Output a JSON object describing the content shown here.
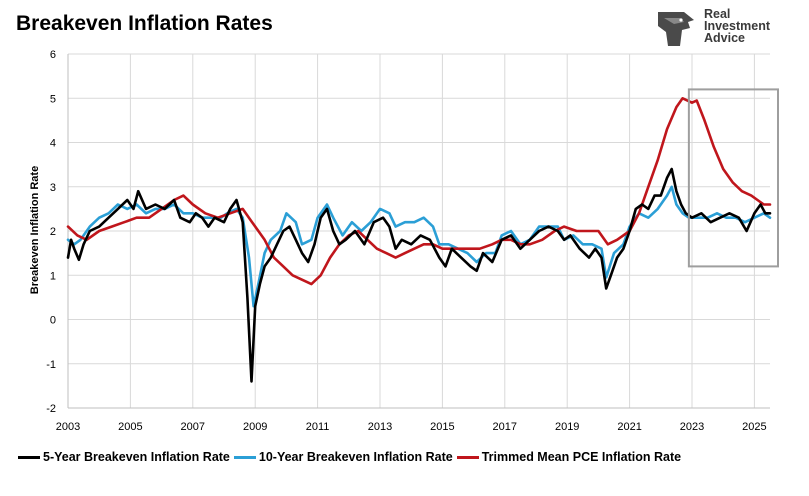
{
  "title": "Breakeven Inflation Rates",
  "logo": {
    "line1": "Real",
    "line2": "Investment",
    "line3": "Advice",
    "icon": "eagle-head-logo-icon"
  },
  "colors": {
    "five_year": "#000000",
    "ten_year": "#2b9fd6",
    "pce": "#c0161c",
    "highlight_box": "#9e9e9e",
    "grid": "#d9d9d9"
  },
  "chart_data": {
    "type": "line",
    "title": "Breakeven Inflation Rates",
    "xlabel": "",
    "ylabel": "Breakeven Inflation Rate",
    "xlim": [
      2003.0,
      2025.5
    ],
    "ylim": [
      -2,
      6
    ],
    "grid": true,
    "legend_position": "bottom",
    "x_ticks": [
      "2003",
      "2005",
      "2007",
      "2009",
      "2011",
      "2013",
      "2015",
      "2017",
      "2019",
      "2021",
      "2023",
      "2025"
    ],
    "y_ticks": [
      "-2",
      "-1",
      "0",
      "1",
      "2",
      "3",
      "4",
      "5",
      "6"
    ],
    "highlight_region": {
      "x": [
        2022.9,
        2025.5
      ],
      "y": [
        1.2,
        5.2
      ]
    },
    "series": [
      {
        "name": "5-Year Breakeven Inflation Rate",
        "points": [
          [
            2003.0,
            1.4
          ],
          [
            2003.1,
            1.8
          ],
          [
            2003.2,
            1.6
          ],
          [
            2003.35,
            1.35
          ],
          [
            2003.5,
            1.7
          ],
          [
            2003.7,
            2.0
          ],
          [
            2004.0,
            2.1
          ],
          [
            2004.3,
            2.3
          ],
          [
            2004.6,
            2.5
          ],
          [
            2004.9,
            2.7
          ],
          [
            2005.1,
            2.5
          ],
          [
            2005.25,
            2.9
          ],
          [
            2005.5,
            2.5
          ],
          [
            2005.8,
            2.6
          ],
          [
            2006.1,
            2.5
          ],
          [
            2006.4,
            2.7
          ],
          [
            2006.6,
            2.3
          ],
          [
            2006.9,
            2.2
          ],
          [
            2007.1,
            2.4
          ],
          [
            2007.3,
            2.3
          ],
          [
            2007.5,
            2.1
          ],
          [
            2007.7,
            2.3
          ],
          [
            2008.0,
            2.2
          ],
          [
            2008.2,
            2.5
          ],
          [
            2008.4,
            2.7
          ],
          [
            2008.6,
            2.2
          ],
          [
            2008.75,
            0.5
          ],
          [
            2008.88,
            -1.4
          ],
          [
            2009.0,
            0.3
          ],
          [
            2009.15,
            0.8
          ],
          [
            2009.3,
            1.2
          ],
          [
            2009.5,
            1.4
          ],
          [
            2009.7,
            1.7
          ],
          [
            2009.9,
            2.0
          ],
          [
            2010.1,
            2.1
          ],
          [
            2010.3,
            1.8
          ],
          [
            2010.5,
            1.5
          ],
          [
            2010.7,
            1.3
          ],
          [
            2010.9,
            1.7
          ],
          [
            2011.1,
            2.3
          ],
          [
            2011.3,
            2.5
          ],
          [
            2011.5,
            2.0
          ],
          [
            2011.7,
            1.7
          ],
          [
            2011.9,
            1.8
          ],
          [
            2012.2,
            2.0
          ],
          [
            2012.5,
            1.7
          ],
          [
            2012.8,
            2.2
          ],
          [
            2013.1,
            2.3
          ],
          [
            2013.3,
            2.1
          ],
          [
            2013.5,
            1.6
          ],
          [
            2013.7,
            1.8
          ],
          [
            2014.0,
            1.7
          ],
          [
            2014.3,
            1.9
          ],
          [
            2014.6,
            1.8
          ],
          [
            2014.9,
            1.4
          ],
          [
            2015.1,
            1.2
          ],
          [
            2015.3,
            1.6
          ],
          [
            2015.6,
            1.4
          ],
          [
            2015.9,
            1.2
          ],
          [
            2016.1,
            1.1
          ],
          [
            2016.3,
            1.5
          ],
          [
            2016.6,
            1.3
          ],
          [
            2016.9,
            1.8
          ],
          [
            2017.2,
            1.9
          ],
          [
            2017.5,
            1.6
          ],
          [
            2017.8,
            1.8
          ],
          [
            2018.1,
            2.0
          ],
          [
            2018.4,
            2.1
          ],
          [
            2018.7,
            2.0
          ],
          [
            2018.9,
            1.8
          ],
          [
            2019.1,
            1.9
          ],
          [
            2019.4,
            1.6
          ],
          [
            2019.7,
            1.4
          ],
          [
            2019.9,
            1.6
          ],
          [
            2020.1,
            1.4
          ],
          [
            2020.25,
            0.7
          ],
          [
            2020.4,
            1.0
          ],
          [
            2020.6,
            1.4
          ],
          [
            2020.8,
            1.6
          ],
          [
            2021.0,
            2.0
          ],
          [
            2021.2,
            2.5
          ],
          [
            2021.4,
            2.6
          ],
          [
            2021.6,
            2.5
          ],
          [
            2021.8,
            2.8
          ],
          [
            2022.0,
            2.8
          ],
          [
            2022.2,
            3.2
          ],
          [
            2022.35,
            3.4
          ],
          [
            2022.5,
            2.9
          ],
          [
            2022.65,
            2.6
          ],
          [
            2022.8,
            2.4
          ],
          [
            2023.0,
            2.3
          ],
          [
            2023.3,
            2.4
          ],
          [
            2023.6,
            2.2
          ],
          [
            2023.9,
            2.3
          ],
          [
            2024.2,
            2.4
          ],
          [
            2024.5,
            2.3
          ],
          [
            2024.75,
            2.0
          ],
          [
            2025.0,
            2.4
          ],
          [
            2025.2,
            2.6
          ],
          [
            2025.35,
            2.4
          ],
          [
            2025.5,
            2.4
          ]
        ]
      },
      {
        "name": "10-Year Breakeven Inflation Rate",
        "points": [
          [
            2003.0,
            1.8
          ],
          [
            2003.2,
            1.7
          ],
          [
            2003.4,
            1.8
          ],
          [
            2003.7,
            2.1
          ],
          [
            2004.0,
            2.3
          ],
          [
            2004.3,
            2.4
          ],
          [
            2004.6,
            2.6
          ],
          [
            2004.9,
            2.5
          ],
          [
            2005.2,
            2.6
          ],
          [
            2005.5,
            2.4
          ],
          [
            2005.8,
            2.5
          ],
          [
            2006.1,
            2.5
          ],
          [
            2006.4,
            2.6
          ],
          [
            2006.7,
            2.4
          ],
          [
            2007.0,
            2.4
          ],
          [
            2007.3,
            2.3
          ],
          [
            2007.6,
            2.3
          ],
          [
            2007.9,
            2.3
          ],
          [
            2008.1,
            2.4
          ],
          [
            2008.4,
            2.5
          ],
          [
            2008.6,
            2.3
          ],
          [
            2008.8,
            1.4
          ],
          [
            2008.95,
            0.3
          ],
          [
            2009.1,
            0.8
          ],
          [
            2009.3,
            1.5
          ],
          [
            2009.5,
            1.8
          ],
          [
            2009.8,
            2.0
          ],
          [
            2010.0,
            2.4
          ],
          [
            2010.3,
            2.2
          ],
          [
            2010.5,
            1.7
          ],
          [
            2010.8,
            1.8
          ],
          [
            2011.0,
            2.3
          ],
          [
            2011.3,
            2.6
          ],
          [
            2011.5,
            2.3
          ],
          [
            2011.8,
            1.9
          ],
          [
            2012.1,
            2.2
          ],
          [
            2012.4,
            2.0
          ],
          [
            2012.7,
            2.2
          ],
          [
            2013.0,
            2.5
          ],
          [
            2013.3,
            2.4
          ],
          [
            2013.5,
            2.1
          ],
          [
            2013.8,
            2.2
          ],
          [
            2014.1,
            2.2
          ],
          [
            2014.4,
            2.3
          ],
          [
            2014.7,
            2.1
          ],
          [
            2014.9,
            1.7
          ],
          [
            2015.2,
            1.7
          ],
          [
            2015.5,
            1.6
          ],
          [
            2015.8,
            1.5
          ],
          [
            2016.1,
            1.3
          ],
          [
            2016.4,
            1.5
          ],
          [
            2016.7,
            1.5
          ],
          [
            2016.9,
            1.9
          ],
          [
            2017.2,
            2.0
          ],
          [
            2017.5,
            1.7
          ],
          [
            2017.8,
            1.8
          ],
          [
            2018.1,
            2.1
          ],
          [
            2018.4,
            2.1
          ],
          [
            2018.7,
            2.1
          ],
          [
            2018.9,
            1.8
          ],
          [
            2019.2,
            1.9
          ],
          [
            2019.5,
            1.7
          ],
          [
            2019.8,
            1.7
          ],
          [
            2020.1,
            1.6
          ],
          [
            2020.25,
            0.95
          ],
          [
            2020.5,
            1.5
          ],
          [
            2020.8,
            1.7
          ],
          [
            2021.0,
            2.1
          ],
          [
            2021.3,
            2.4
          ],
          [
            2021.6,
            2.3
          ],
          [
            2021.9,
            2.5
          ],
          [
            2022.2,
            2.8
          ],
          [
            2022.35,
            3.0
          ],
          [
            2022.5,
            2.6
          ],
          [
            2022.7,
            2.4
          ],
          [
            2022.9,
            2.3
          ],
          [
            2023.2,
            2.3
          ],
          [
            2023.5,
            2.3
          ],
          [
            2023.8,
            2.4
          ],
          [
            2024.1,
            2.3
          ],
          [
            2024.4,
            2.3
          ],
          [
            2024.7,
            2.2
          ],
          [
            2025.0,
            2.3
          ],
          [
            2025.3,
            2.4
          ],
          [
            2025.5,
            2.3
          ]
        ]
      },
      {
        "name": "Trimmed Mean PCE Inflation Rate",
        "points": [
          [
            2003.0,
            2.1
          ],
          [
            2003.3,
            1.9
          ],
          [
            2003.6,
            1.8
          ],
          [
            2004.0,
            2.0
          ],
          [
            2004.4,
            2.1
          ],
          [
            2004.8,
            2.2
          ],
          [
            2005.2,
            2.3
          ],
          [
            2005.6,
            2.3
          ],
          [
            2006.0,
            2.5
          ],
          [
            2006.4,
            2.7
          ],
          [
            2006.7,
            2.8
          ],
          [
            2007.0,
            2.6
          ],
          [
            2007.4,
            2.4
          ],
          [
            2007.8,
            2.3
          ],
          [
            2008.2,
            2.4
          ],
          [
            2008.6,
            2.5
          ],
          [
            2008.9,
            2.2
          ],
          [
            2009.3,
            1.8
          ],
          [
            2009.6,
            1.4
          ],
          [
            2009.9,
            1.2
          ],
          [
            2010.2,
            1.0
          ],
          [
            2010.5,
            0.9
          ],
          [
            2010.8,
            0.8
          ],
          [
            2011.1,
            1.0
          ],
          [
            2011.4,
            1.4
          ],
          [
            2011.7,
            1.7
          ],
          [
            2012.0,
            1.9
          ],
          [
            2012.3,
            2.0
          ],
          [
            2012.6,
            1.8
          ],
          [
            2012.9,
            1.6
          ],
          [
            2013.2,
            1.5
          ],
          [
            2013.5,
            1.4
          ],
          [
            2013.8,
            1.5
          ],
          [
            2014.1,
            1.6
          ],
          [
            2014.4,
            1.7
          ],
          [
            2014.7,
            1.7
          ],
          [
            2015.0,
            1.6
          ],
          [
            2015.4,
            1.6
          ],
          [
            2015.8,
            1.6
          ],
          [
            2016.2,
            1.6
          ],
          [
            2016.6,
            1.7
          ],
          [
            2016.9,
            1.8
          ],
          [
            2017.2,
            1.8
          ],
          [
            2017.5,
            1.7
          ],
          [
            2017.8,
            1.7
          ],
          [
            2018.2,
            1.8
          ],
          [
            2018.6,
            2.0
          ],
          [
            2018.9,
            2.1
          ],
          [
            2019.3,
            2.0
          ],
          [
            2019.7,
            2.0
          ],
          [
            2020.0,
            2.0
          ],
          [
            2020.3,
            1.7
          ],
          [
            2020.6,
            1.8
          ],
          [
            2021.0,
            2.0
          ],
          [
            2021.3,
            2.4
          ],
          [
            2021.6,
            3.0
          ],
          [
            2021.9,
            3.6
          ],
          [
            2022.2,
            4.3
          ],
          [
            2022.5,
            4.8
          ],
          [
            2022.7,
            5.0
          ],
          [
            2023.0,
            4.9
          ],
          [
            2023.15,
            4.95
          ],
          [
            2023.4,
            4.5
          ],
          [
            2023.7,
            3.9
          ],
          [
            2024.0,
            3.4
          ],
          [
            2024.3,
            3.1
          ],
          [
            2024.6,
            2.9
          ],
          [
            2024.9,
            2.8
          ],
          [
            2025.1,
            2.7
          ],
          [
            2025.3,
            2.6
          ],
          [
            2025.5,
            2.6
          ]
        ]
      }
    ]
  },
  "legend": {
    "five_year_label": "5-Year Breakeven Inflation Rate",
    "ten_year_label": "10-Year Breakeven Inflation Rate",
    "pce_label": "Trimmed Mean PCE Inflation Rate"
  }
}
